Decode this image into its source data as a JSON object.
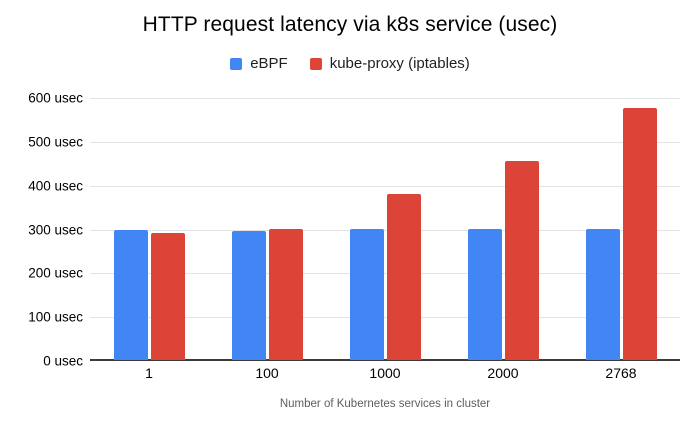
{
  "chart_data": {
    "type": "bar",
    "title": "HTTP request latency via k8s service (usec)",
    "xlabel": "Number of Kubernetes services in cluster",
    "ylabel": "",
    "categories": [
      "1",
      "100",
      "1000",
      "2000",
      "2768"
    ],
    "series": [
      {
        "name": "eBPF",
        "color": "#4285f4",
        "values": [
          298,
          296,
          299,
          300,
          300
        ]
      },
      {
        "name": "kube-proxy (iptables)",
        "color": "#db4437",
        "values": [
          291,
          301,
          380,
          455,
          577
        ]
      }
    ],
    "ylim": [
      0,
      600
    ],
    "ytick_step": 100,
    "yticks": [
      {
        "value": 600,
        "label": "600 usec"
      },
      {
        "value": 500,
        "label": "500 usec"
      },
      {
        "value": 400,
        "label": "400 usec"
      },
      {
        "value": 300,
        "label": "300 usec"
      },
      {
        "value": 200,
        "label": "200 usec"
      },
      {
        "value": 100,
        "label": "100 usec"
      },
      {
        "value": 0,
        "label": "0 usec"
      }
    ],
    "grid": true,
    "legend_position": "top"
  },
  "colors": {
    "background": "#ffffff",
    "gridline": "#e3e3e3",
    "baseline": "#3c3c3c",
    "title_text": "#000000",
    "tick_text": "#000000",
    "axis_title_text": "#5e5e5e"
  }
}
